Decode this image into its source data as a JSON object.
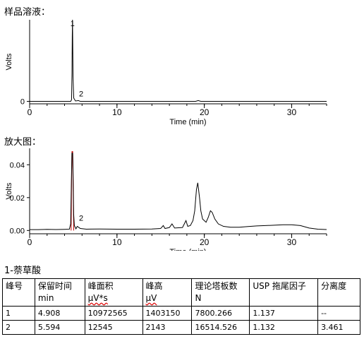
{
  "sections": {
    "sample_solution": "样品溶液：",
    "zoom_view": "放大图：",
    "compound": "1-萘草酸"
  },
  "chart_data": [
    {
      "type": "line",
      "ylabel": "Volts",
      "xlabel": "Time (min)",
      "xlim": [
        0,
        34
      ],
      "ylim": [
        -0.03,
        1.0
      ],
      "x_ticks": [
        0,
        10,
        20,
        30
      ],
      "x_tick_labels": [
        "0",
        "10",
        "20",
        "30"
      ],
      "y_ticks": [
        0
      ],
      "y_tick_labels": [
        "0"
      ],
      "grid": false,
      "series": [
        {
          "color": "#000000",
          "points": [
            [
              0,
              0
            ],
            [
              4.7,
              0
            ],
            [
              4.8,
              0.02
            ],
            [
              4.85,
              0.35
            ],
            [
              4.88,
              0.8
            ],
            [
              4.908,
              1.0
            ],
            [
              4.93,
              0.8
            ],
            [
              4.97,
              0.3
            ],
            [
              5.05,
              0.04
            ],
            [
              5.25,
              0.005
            ],
            [
              5.594,
              0.01
            ],
            [
              5.8,
              0
            ],
            [
              19.0,
              0
            ],
            [
              19.3,
              0.01
            ],
            [
              19.6,
              0
            ],
            [
              34,
              0
            ]
          ]
        }
      ],
      "peak_labels": [
        {
          "x": 4.908,
          "y": 0.92,
          "text": "1"
        },
        {
          "x": 5.9,
          "y": 0.06,
          "text": "2"
        }
      ]
    },
    {
      "type": "line",
      "ylabel": "Volts",
      "xlabel": "Time (min)",
      "xlim": [
        0,
        34
      ],
      "ylim": [
        -0.002,
        0.05
      ],
      "x_ticks": [
        0,
        10,
        20,
        30
      ],
      "x_tick_labels": [
        "0",
        "10",
        "20",
        "30"
      ],
      "y_ticks": [
        0,
        0.02,
        0.04
      ],
      "y_tick_labels": [
        "0.00",
        "0.02",
        "0.04"
      ],
      "grid": false,
      "series": [
        {
          "color": "#c00000",
          "points": [
            [
              4.75,
              0
            ],
            [
              4.8,
              0.03
            ],
            [
              4.85,
              0.048
            ],
            [
              4.93,
              0.048
            ],
            [
              4.97,
              0.03
            ],
            [
              5.05,
              0
            ]
          ]
        },
        {
          "color": "#000000",
          "points": [
            [
              0,
              0.0005
            ],
            [
              1,
              0.0005
            ],
            [
              2,
              0.0007
            ],
            [
              3,
              0.0006
            ],
            [
              4,
              0.0007
            ],
            [
              4.55,
              0.0008
            ],
            [
              4.7,
              0.004
            ],
            [
              4.78,
              0.03
            ],
            [
              4.84,
              0.047
            ],
            [
              4.93,
              0.047
            ],
            [
              4.99,
              0.03
            ],
            [
              5.04,
              0.01
            ],
            [
              5.12,
              0.003
            ],
            [
              5.3,
              0.001
            ],
            [
              5.45,
              0.0025
            ],
            [
              5.594,
              0.002
            ],
            [
              5.8,
              0.0012
            ],
            [
              6.5,
              0.0008
            ],
            [
              8,
              0.0009
            ],
            [
              10,
              0.0008
            ],
            [
              12,
              0.0008
            ],
            [
              14,
              0.0009
            ],
            [
              15.0,
              0.0012
            ],
            [
              15.3,
              0.003
            ],
            [
              15.5,
              0.0012
            ],
            [
              16.0,
              0.0018
            ],
            [
              16.3,
              0.004
            ],
            [
              16.6,
              0.0015
            ],
            [
              17.5,
              0.0018
            ],
            [
              17.9,
              0.006
            ],
            [
              18.1,
              0.0025
            ],
            [
              18.4,
              0.003
            ],
            [
              18.7,
              0.006
            ],
            [
              18.9,
              0.012
            ],
            [
              19.1,
              0.025
            ],
            [
              19.25,
              0.029
            ],
            [
              19.45,
              0.02
            ],
            [
              19.6,
              0.012
            ],
            [
              19.8,
              0.007
            ],
            [
              20.0,
              0.006
            ],
            [
              20.2,
              0.005
            ],
            [
              20.45,
              0.008
            ],
            [
              20.7,
              0.012
            ],
            [
              20.9,
              0.011
            ],
            [
              21.2,
              0.007
            ],
            [
              21.6,
              0.004
            ],
            [
              22.2,
              0.0025
            ],
            [
              23,
              0.002
            ],
            [
              24,
              0.002
            ],
            [
              25,
              0.0024
            ],
            [
              26,
              0.0028
            ],
            [
              27,
              0.003
            ],
            [
              28,
              0.0032
            ],
            [
              29,
              0.0035
            ],
            [
              30,
              0.0035
            ],
            [
              31,
              0.003
            ],
            [
              32,
              0.0015
            ],
            [
              33,
              0.0008
            ],
            [
              34,
              0.0006
            ]
          ]
        }
      ],
      "peak_labels": [
        {
          "x": 5.9,
          "y": 0.006,
          "text": "2"
        }
      ]
    }
  ],
  "peak_table": {
    "headers": [
      {
        "l1": "峰号",
        "l2": ""
      },
      {
        "l1": "保留时间",
        "l2": "min"
      },
      {
        "l1": "峰面积",
        "l2": "µV*s"
      },
      {
        "l1": "峰高",
        "l2": "µV"
      },
      {
        "l1": "理论塔板数",
        "l2": "N"
      },
      {
        "l1": "USP 拖尾因子",
        "l2": ""
      },
      {
        "l1": "分离度",
        "l2": ""
      }
    ],
    "rows": [
      [
        "1",
        "4.908",
        "10972565",
        "1403150",
        "7800.266",
        "1.137",
        "--"
      ],
      [
        "2",
        "5.594",
        "12545",
        "2143",
        "16514.526",
        "1.132",
        "3.461"
      ]
    ]
  }
}
